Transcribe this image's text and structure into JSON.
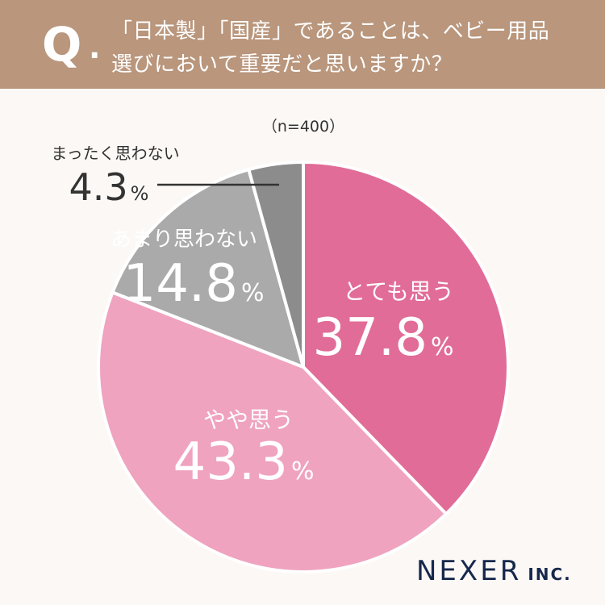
{
  "header": {
    "q_mark": "Q",
    "q_dot": ".",
    "line1": "「日本製」「国産」であることは、ベビー用品",
    "line2": "選びにおいて重要だと思いますか？"
  },
  "chart_data": {
    "type": "pie",
    "title": "「日本製」「国産」であることは、ベビー用品選びにおいて重要だと思いますか？",
    "sample_note": "（n=400）",
    "unit": "%",
    "slices": [
      {
        "label": "とても思う",
        "value": 37.8,
        "display": "37.8",
        "color": "#e16c98",
        "label_color": "#ffffff"
      },
      {
        "label": "やや思う",
        "value": 43.3,
        "display": "43.3",
        "color": "#efa3bf",
        "label_color": "#ffffff"
      },
      {
        "label": "あまり思わない",
        "value": 14.8,
        "display": "14.8",
        "color": "#aaaaaa",
        "label_color": "#ffffff"
      },
      {
        "label": "まったく思わない",
        "value": 4.3,
        "display": "4.3",
        "color": "#8c8c8c",
        "label_color": "#333333"
      }
    ]
  },
  "footer": {
    "brand": "NEXER",
    "suffix": "INC."
  }
}
